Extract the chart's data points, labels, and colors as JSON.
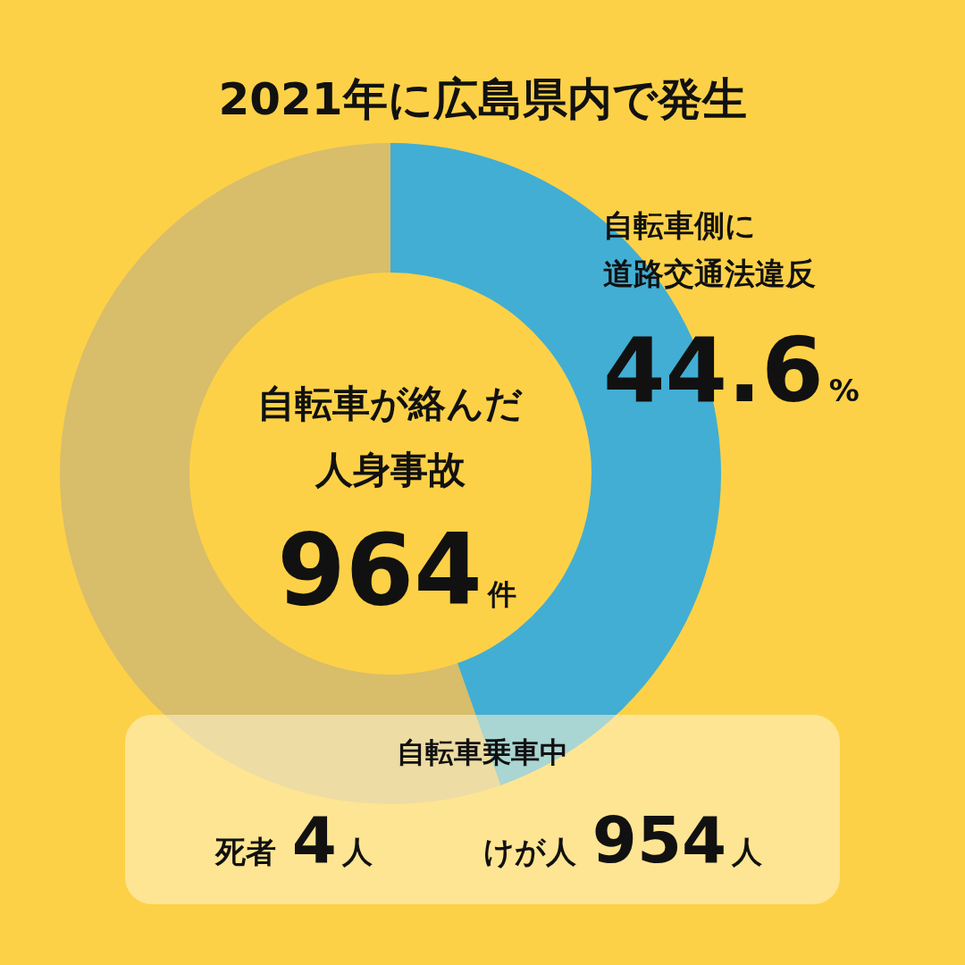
{
  "chart_data": {
    "type": "donut",
    "title": "2021年に広島県内で発生",
    "categories": [
      "自転車側に道路交通法違反",
      null
    ],
    "values": [
      44.6,
      55.4
    ],
    "colors": [
      "#42aed3",
      "#d8bd6a"
    ],
    "value_labels": [
      "44.6%",
      null
    ],
    "annotations": [
      "自転車が絡んだ人身事故",
      "964件",
      "自転車乗車中",
      "死者 4人",
      "けが人 954人"
    ]
  }
}
